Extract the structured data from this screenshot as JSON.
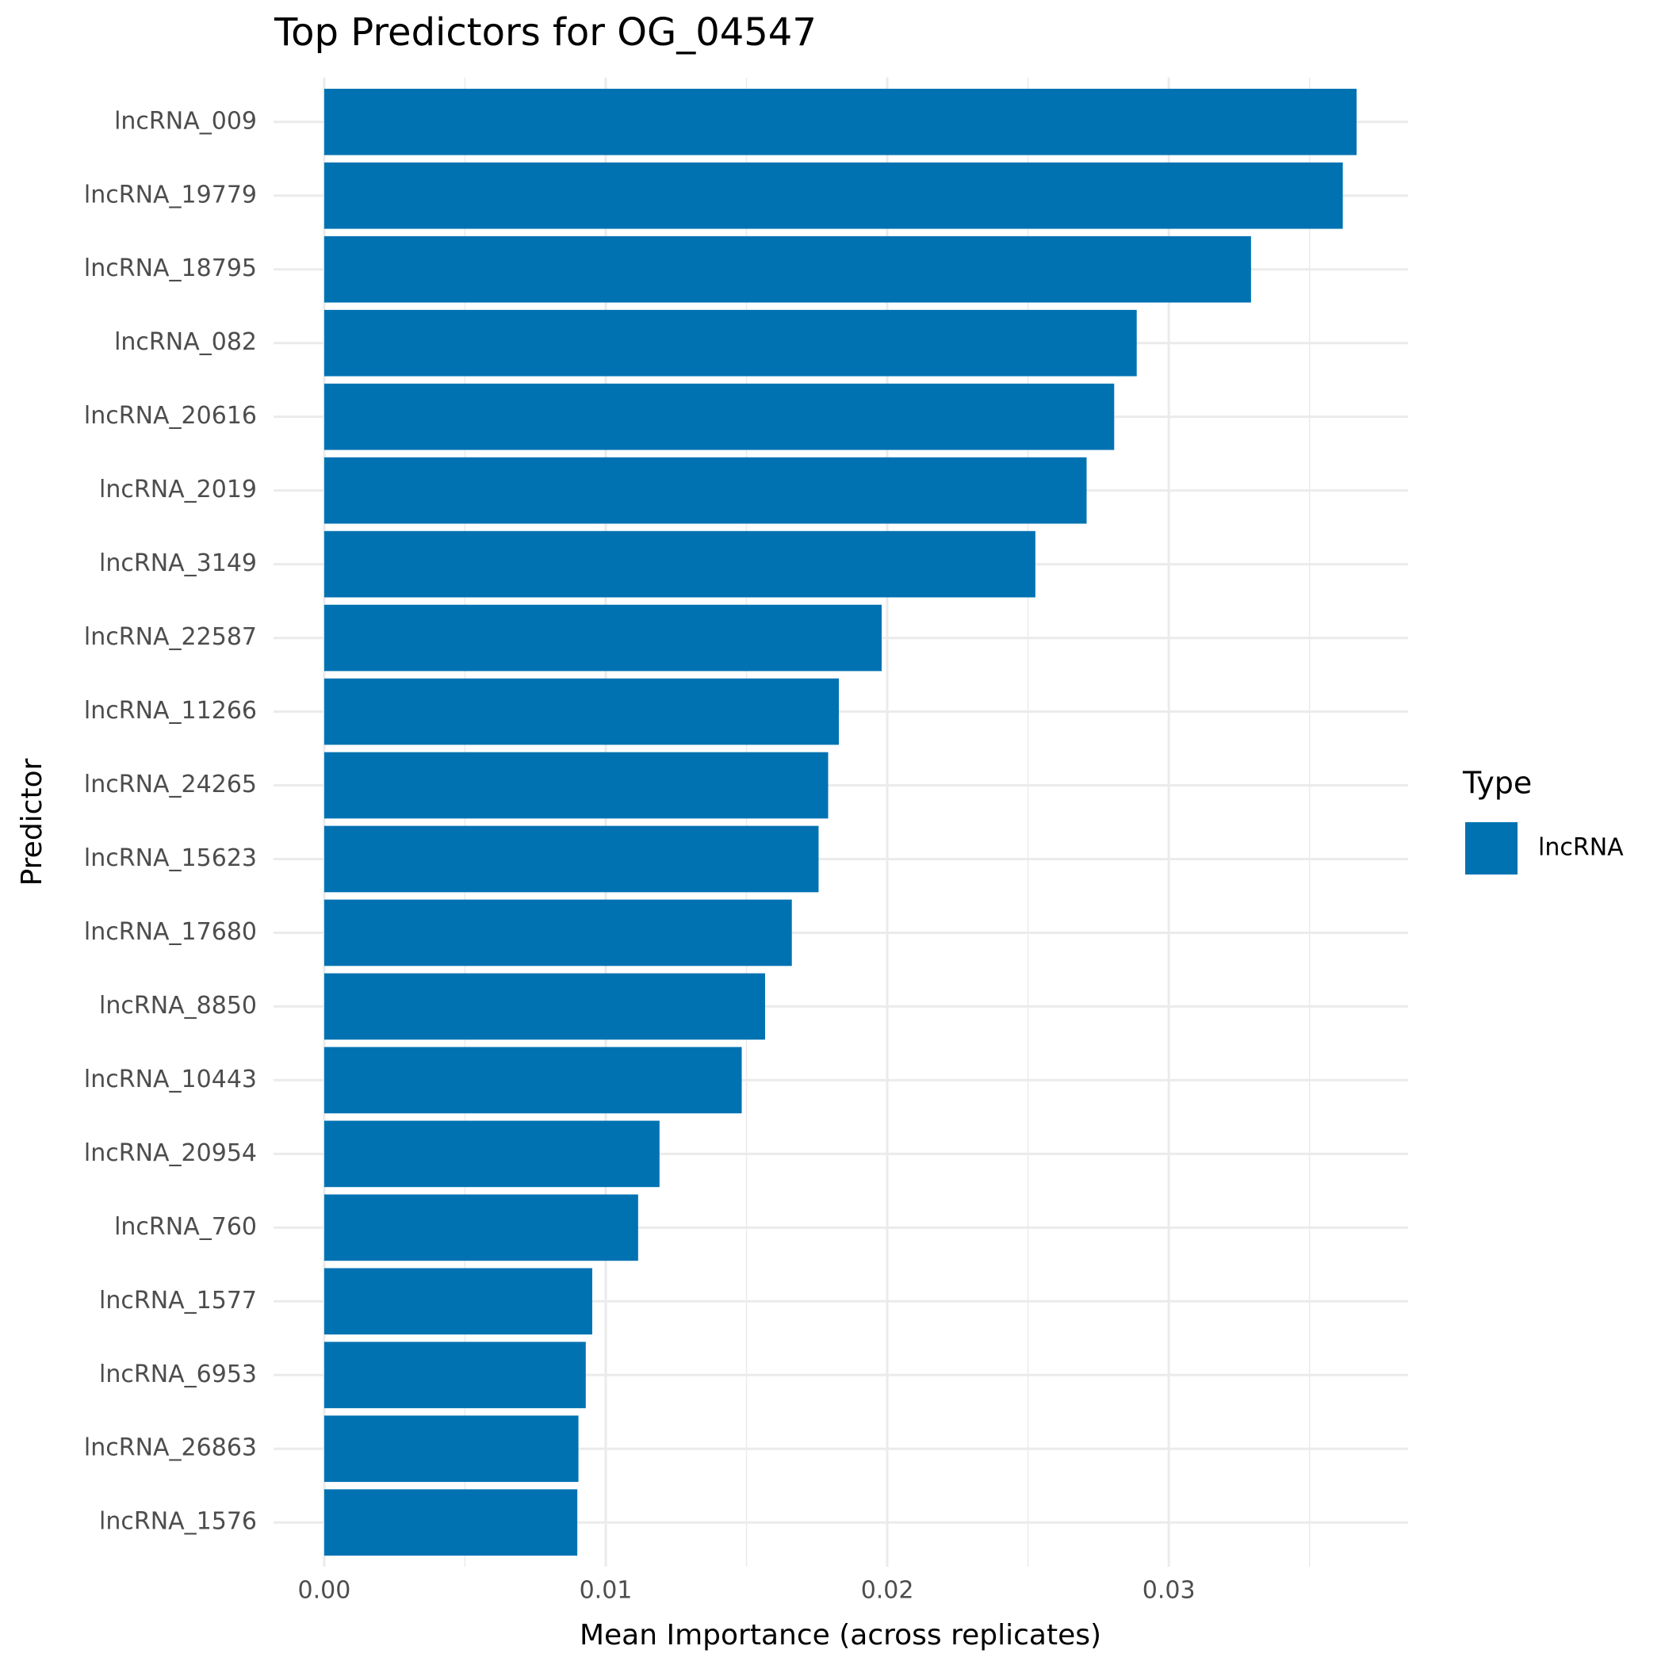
{
  "chart_data": {
    "type": "barh",
    "title": "Top Predictors for OG_04547",
    "x_label": "Mean Importance (across replicates)",
    "y_label": "Predictor",
    "categories": [
      "lncRNA_009",
      "lncRNA_19779",
      "lncRNA_18795",
      "lncRNA_082",
      "lncRNA_20616",
      "lncRNA_2019",
      "lncRNA_3149",
      "lncRNA_22587",
      "lncRNA_11266",
      "lncRNA_24265",
      "lncRNA_15623",
      "lncRNA_17680",
      "lncRNA_8850",
      "lncRNA_10443",
      "lncRNA_20954",
      "lncRNA_760",
      "lncRNA_1577",
      "lncRNA_6953",
      "lncRNA_26863",
      "lncRNA_1576"
    ],
    "series": [
      {
        "name": "lncRNA",
        "color": "#0072b2",
        "values": [
          0.03667,
          0.03618,
          0.03292,
          0.02886,
          0.02806,
          0.02708,
          0.02526,
          0.0198,
          0.01828,
          0.0179,
          0.01756,
          0.01661,
          0.01566,
          0.01483,
          0.01191,
          0.01115,
          0.00952,
          0.00929,
          0.00903,
          0.00899
        ]
      }
    ],
    "legend_title": "Type",
    "legend": "right",
    "xlim": [
      -0.0018,
      0.0385
    ],
    "xticks": [
      {
        "value": 0,
        "label": "0.00"
      },
      0.01,
      0.02,
      0.03
    ],
    "xminor": [
      0.005,
      0.015,
      0.025,
      0.035
    ],
    "grid": true,
    "grid_color": "#ebebeb"
  }
}
